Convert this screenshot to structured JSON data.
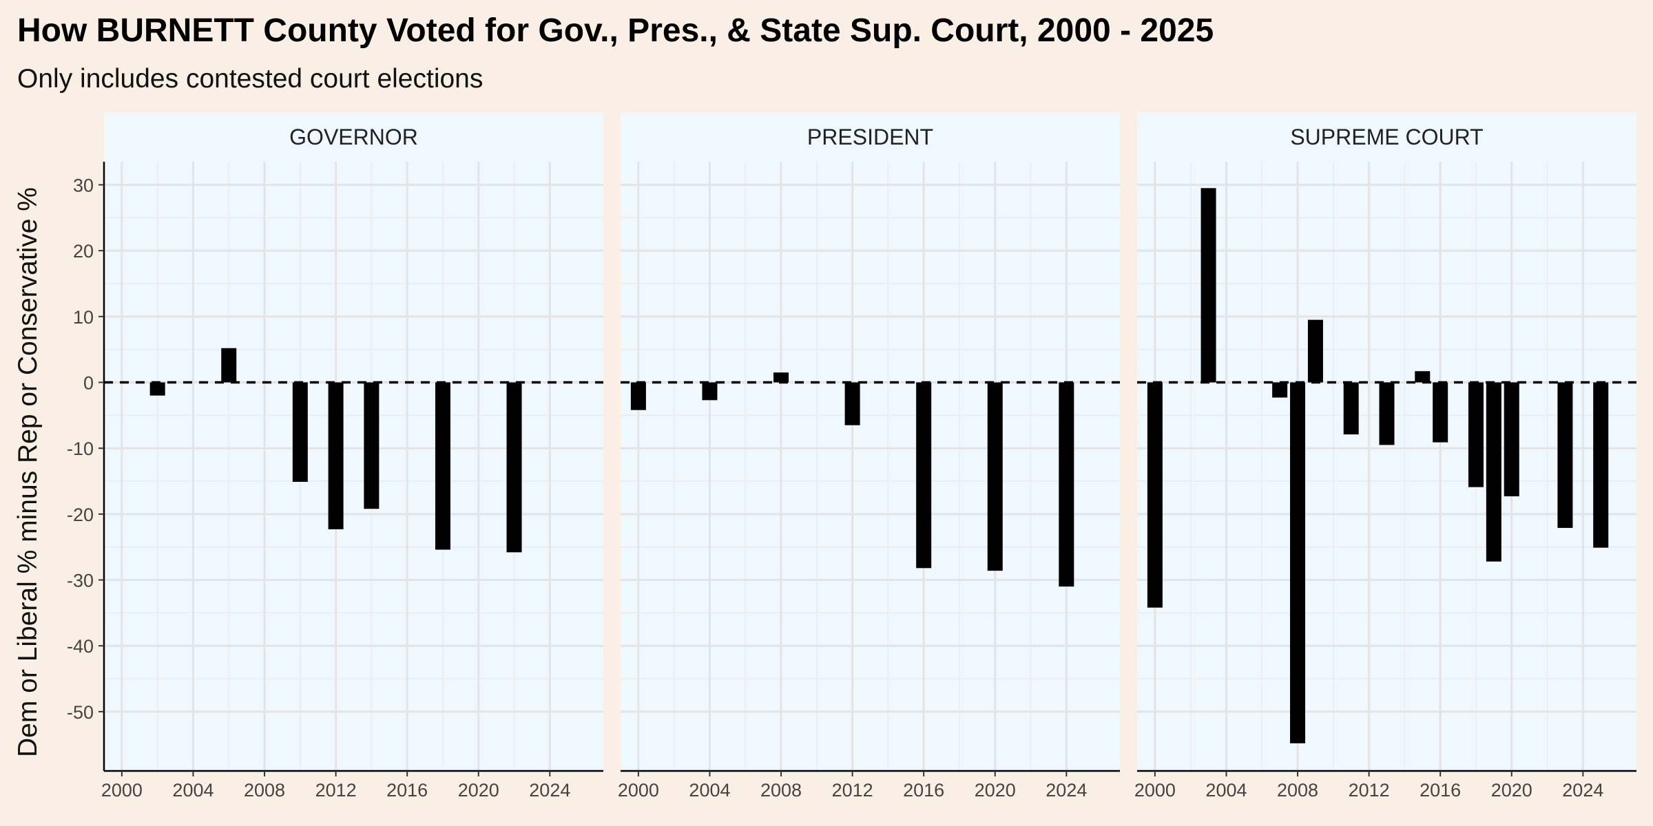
{
  "chart_data": {
    "type": "bar",
    "title": "How BURNETT County Voted for Gov., Pres., & State Sup. Court, 2000 - 2025",
    "subtitle": "Only includes contested court elections",
    "ylabel": "Dem or Liberal % minus Rep or Conservative %",
    "xlabel": "",
    "xlim": [
      1999,
      2027
    ],
    "ylim": [
      -59,
      33.5
    ],
    "x_ticks": [
      2000,
      2004,
      2008,
      2012,
      2016,
      2020,
      2024
    ],
    "y_ticks": [
      30,
      20,
      10,
      0,
      -10,
      -20,
      -30,
      -40,
      -50
    ],
    "grid": true,
    "reference_line": 0,
    "bar_color": "#000000",
    "panel_background": "#eff7ff",
    "page_background": "#faefe4",
    "facets": [
      {
        "label": "GOVERNOR",
        "x": [
          2002,
          2006,
          2010,
          2012,
          2014,
          2018,
          2022
        ],
        "values": [
          -2,
          5.2,
          -15.1,
          -22.3,
          -19.2,
          -25.4,
          -25.8
        ]
      },
      {
        "label": "PRESIDENT",
        "x": [
          2000,
          2004,
          2008,
          2012,
          2016,
          2020,
          2024
        ],
        "values": [
          -4.2,
          -2.7,
          1.5,
          -6.5,
          -28.2,
          -28.6,
          -31
        ]
      },
      {
        "label": "SUPREME COURT",
        "x": [
          2000,
          2003,
          2007,
          2008,
          2009,
          2011,
          2013,
          2015,
          2016,
          2018,
          2019,
          2020,
          2023,
          2025
        ],
        "values": [
          -34.2,
          29.5,
          -2.3,
          -54.8,
          9.5,
          -7.9,
          -9.5,
          1.7,
          -9.1,
          -15.9,
          -27.2,
          -17.3,
          -22.1,
          -25.1
        ]
      }
    ]
  }
}
